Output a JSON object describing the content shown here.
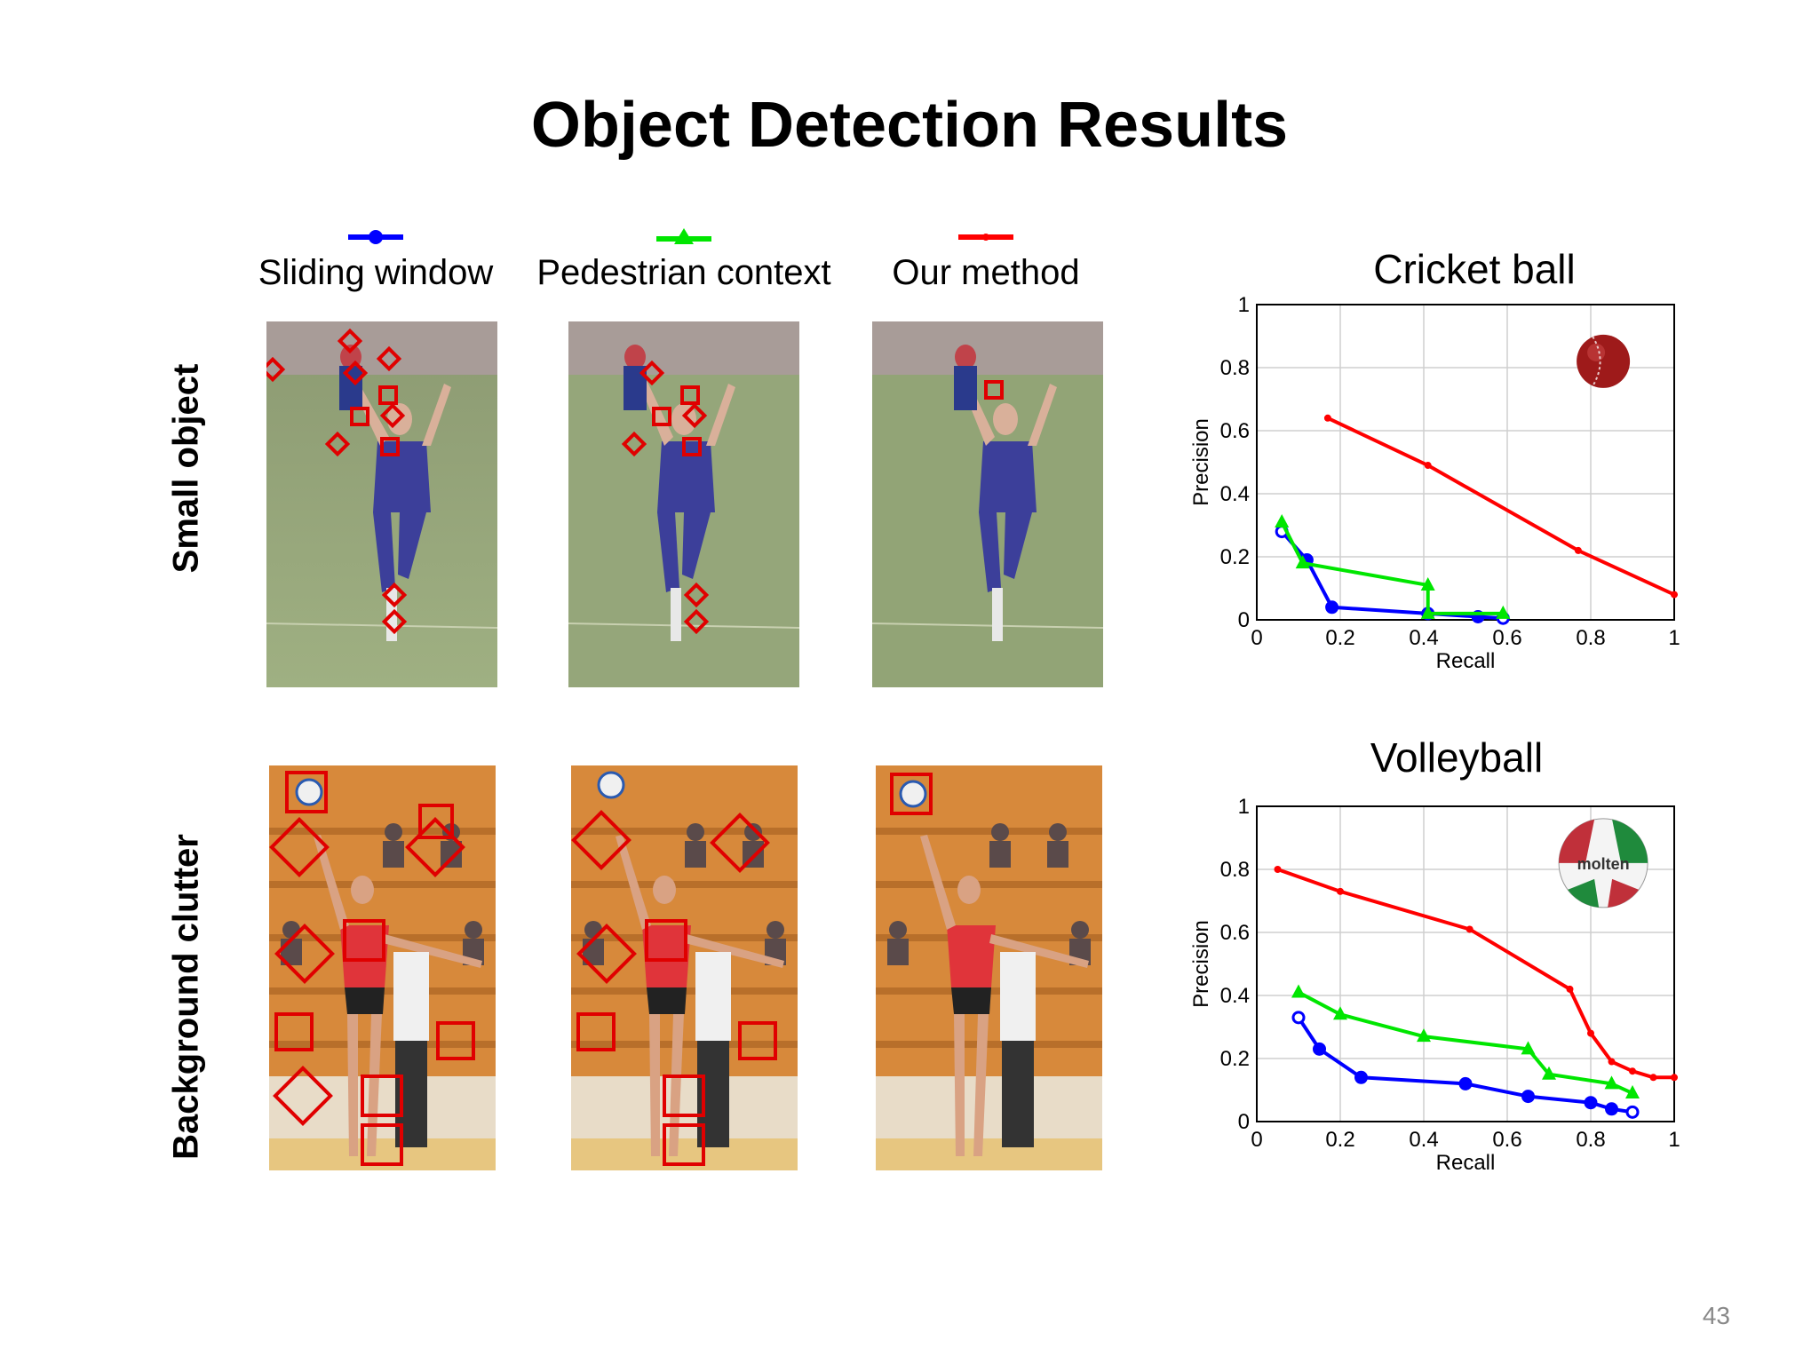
{
  "slide": {
    "title": "Object Detection Results",
    "page_number": "43",
    "row_labels": [
      "Small object",
      "Background clutter"
    ],
    "colors": {
      "sliding": "#0000ff",
      "pedestrian": "#00e600",
      "ours": "#ff0000",
      "box": "#e00000"
    }
  },
  "legend": [
    {
      "label": "Sliding window",
      "color": "#0000ff",
      "marker": "circle"
    },
    {
      "label": "Pedestrian context",
      "color": "#00e600",
      "marker": "triangle"
    },
    {
      "label": "Our method",
      "color": "#ff0000",
      "marker": "dot"
    }
  ],
  "chart_data": [
    {
      "type": "line",
      "title": "Cricket ball",
      "xlabel": "Recall",
      "ylabel": "Precision",
      "xlim": [
        0,
        1
      ],
      "ylim": [
        0,
        1
      ],
      "xticks": [
        "0",
        "0.2",
        "0.4",
        "0.6",
        "0.8",
        "1"
      ],
      "yticks": [
        "0",
        "0.2",
        "0.4",
        "0.6",
        "0.8",
        "1"
      ],
      "grid": true,
      "icon": "cricket-ball-icon",
      "series": [
        {
          "color": "#0000ff",
          "marker": "circle",
          "x": [
            0.06,
            0.12,
            0.18,
            0.41,
            0.53,
            0.59
          ],
          "y": [
            0.28,
            0.19,
            0.04,
            0.02,
            0.01,
            0.005
          ]
        },
        {
          "color": "#00e600",
          "marker": "triangle",
          "x": [
            0.06,
            0.11,
            0.41,
            0.41,
            0.59
          ],
          "y": [
            0.31,
            0.18,
            0.11,
            0.02,
            0.02
          ]
        },
        {
          "color": "#ff0000",
          "marker": "dot",
          "x": [
            0.17,
            0.41,
            0.77,
            1.0
          ],
          "y": [
            0.64,
            0.49,
            0.22,
            0.08
          ]
        }
      ]
    },
    {
      "type": "line",
      "title": "Volleyball",
      "xlabel": "Recall",
      "ylabel": "Precision",
      "xlim": [
        0,
        1
      ],
      "ylim": [
        0,
        1
      ],
      "xticks": [
        "0",
        "0.2",
        "0.4",
        "0.6",
        "0.8",
        "1"
      ],
      "yticks": [
        "0",
        "0.2",
        "0.4",
        "0.6",
        "0.8",
        "1"
      ],
      "grid": true,
      "icon": "volleyball-icon",
      "icon_text": "molten",
      "series": [
        {
          "color": "#0000ff",
          "marker": "circle",
          "x": [
            0.1,
            0.15,
            0.25,
            0.5,
            0.65,
            0.8,
            0.85,
            0.9
          ],
          "y": [
            0.33,
            0.23,
            0.14,
            0.12,
            0.08,
            0.06,
            0.04,
            0.03
          ]
        },
        {
          "color": "#00e600",
          "marker": "triangle",
          "x": [
            0.1,
            0.2,
            0.4,
            0.65,
            0.7,
            0.85,
            0.9
          ],
          "y": [
            0.41,
            0.34,
            0.27,
            0.23,
            0.15,
            0.12,
            0.09
          ]
        },
        {
          "color": "#ff0000",
          "marker": "dot",
          "x": [
            0.05,
            0.2,
            0.51,
            0.75,
            0.8,
            0.85,
            0.9,
            0.95,
            1.0
          ],
          "y": [
            0.8,
            0.73,
            0.61,
            0.42,
            0.28,
            0.19,
            0.16,
            0.14,
            0.14
          ]
        }
      ]
    }
  ]
}
